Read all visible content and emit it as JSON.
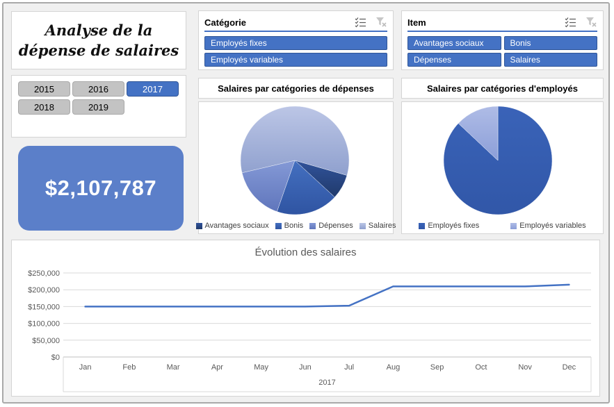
{
  "title_card": {
    "title": "Analyse de la dépense de salaires"
  },
  "year_slicer": {
    "items": [
      {
        "label": "2015",
        "selected": false
      },
      {
        "label": "2016",
        "selected": false
      },
      {
        "label": "2017",
        "selected": true
      },
      {
        "label": "2018",
        "selected": false
      },
      {
        "label": "2019",
        "selected": false
      }
    ]
  },
  "kpi": {
    "value": "$2,107,787"
  },
  "slicers": {
    "categorie": {
      "header": "Catégorie",
      "icons": [
        "multi-select",
        "clear-filter"
      ],
      "items": [
        {
          "label": "Employés fixes",
          "selected": true
        },
        {
          "label": "Employés variables",
          "selected": true
        }
      ]
    },
    "item": {
      "header": "Item",
      "icons": [
        "multi-select",
        "clear-filter"
      ],
      "items": [
        {
          "label": "Avantages sociaux",
          "selected": true
        },
        {
          "label": "Bonis",
          "selected": true
        },
        {
          "label": "Dépenses",
          "selected": true
        },
        {
          "label": "Salaires",
          "selected": true
        }
      ]
    }
  },
  "colors": {
    "accent": "#4472C4",
    "kpi_background": "#5B7FC9",
    "selected_border": "#2F5597",
    "unselected_fill": "#C3C3C3",
    "unselected_border": "#A9A9A9",
    "panel_border": "#D4D4D4",
    "background": "#F0F0F0",
    "gridline": "#D9D9D9",
    "axis_line": "#BFBFBF",
    "text_gray": "#595959"
  },
  "chart_data": [
    {
      "type": "pie",
      "title": "Salaires par catégories de dépenses",
      "labels": [
        "Avantages sociaux",
        "Bonis",
        "Dépenses",
        "Salaires"
      ],
      "percents": [
        7.4,
        18.5,
        16.0,
        58.1
      ],
      "start_angle_deg": 106,
      "colors": [
        [
          "#31539B",
          "#203A6B"
        ],
        [
          "#4470C0",
          "#2F54A2"
        ],
        [
          "#8499D6",
          "#6076BC"
        ],
        [
          "#BCC6E6",
          "#8FA0CE"
        ]
      ],
      "legend_position": "bottom"
    },
    {
      "type": "pie",
      "title": "Salaires par catégories d'employés",
      "labels": [
        "Employés fixes",
        "Employés variables"
      ],
      "percents": [
        87,
        13
      ],
      "start_angle_deg": 0,
      "colors": [
        [
          "#3A63B8",
          "#3157A8"
        ],
        [
          "#AFBCE6",
          "#8B9ED8"
        ]
      ],
      "legend_position": "bottom"
    },
    {
      "type": "line",
      "title": "Évolution des salaires",
      "x": [
        "Jan",
        "Feb",
        "Mar",
        "Apr",
        "May",
        "Jun",
        "Jul",
        "Aug",
        "Sep",
        "Oct",
        "Nov",
        "Dec"
      ],
      "x_group_label": "2017",
      "series": [
        {
          "name": "Salaires",
          "values": [
            150000,
            150000,
            150000,
            150000,
            150000,
            150000,
            152787,
            210000,
            210000,
            210000,
            210000,
            215000
          ]
        }
      ],
      "ylim": [
        0,
        250000
      ],
      "y_ticks": [
        {
          "value": 0,
          "label": "$0"
        },
        {
          "value": 50000,
          "label": "$50,000"
        },
        {
          "value": 100000,
          "label": "$100,000"
        },
        {
          "value": 150000,
          "label": "$150,000"
        },
        {
          "value": 200000,
          "label": "$200,000"
        },
        {
          "value": 250000,
          "label": "$250,000"
        }
      ],
      "line_color": "#4472C4",
      "grid": true,
      "legend_position": "none"
    }
  ]
}
